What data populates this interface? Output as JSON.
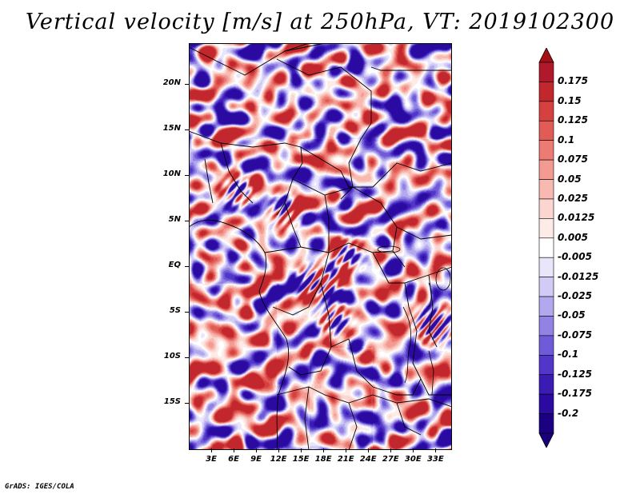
{
  "title": "Vertical velocity [m/s] at 250hPa, VT: 2019102300",
  "credit": "GrADS: IGES/COLA",
  "map": {
    "lon_range": [
      0,
      35
    ],
    "lat_range": [
      -20,
      24.5
    ],
    "lat_ticks": [
      {
        "value": 20,
        "label": "20N"
      },
      {
        "value": 15,
        "label": "15N"
      },
      {
        "value": 10,
        "label": "10N"
      },
      {
        "value": 5,
        "label": "5N"
      },
      {
        "value": 0,
        "label": "EQ"
      },
      {
        "value": -5,
        "label": "5S"
      },
      {
        "value": -10,
        "label": "10S"
      },
      {
        "value": -15,
        "label": "15S"
      }
    ],
    "lon_ticks": [
      {
        "value": 3,
        "label": "3E"
      },
      {
        "value": 6,
        "label": "6E"
      },
      {
        "value": 9,
        "label": "9E"
      },
      {
        "value": 12,
        "label": "12E"
      },
      {
        "value": 15,
        "label": "15E"
      },
      {
        "value": 18,
        "label": "18E"
      },
      {
        "value": 21,
        "label": "21E"
      },
      {
        "value": 24,
        "label": "24E"
      },
      {
        "value": 27,
        "label": "27E"
      },
      {
        "value": 30,
        "label": "30E"
      },
      {
        "value": 33,
        "label": "33E"
      }
    ]
  },
  "colorbar": {
    "levels": [
      "0.175",
      "0.15",
      "0.125",
      "0.1",
      "0.075",
      "0.05",
      "0.025",
      "0.0125",
      "0.005",
      "-0.005",
      "-0.0125",
      "-0.025",
      "-0.05",
      "-0.075",
      "-0.1",
      "-0.125",
      "-0.175",
      "-0.2"
    ],
    "colors": [
      "#b2182b",
      "#c1272d",
      "#d6403f",
      "#e25c56",
      "#ec7b73",
      "#f39a92",
      "#f8b9b1",
      "#fbd6d0",
      "#fdebe7",
      "#ffffff",
      "#e9e6fb",
      "#d1cbf6",
      "#b2a8ee",
      "#9182e4",
      "#6f5ad8",
      "#5236c9",
      "#3a1bb4",
      "#2a0aa0",
      "#1c0082"
    ],
    "top_color": "#a50f15",
    "bottom_color": "#1a007a"
  }
}
